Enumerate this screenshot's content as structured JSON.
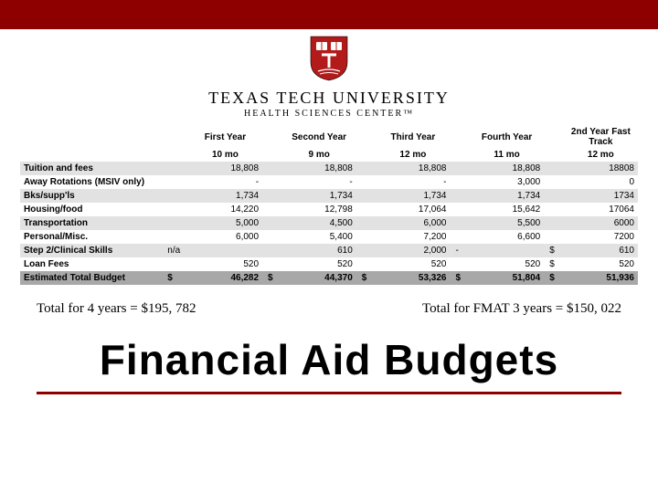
{
  "university": {
    "name": "TEXAS TECH UNIVERSITY",
    "sub": "HEALTH SCIENCES CENTER™",
    "shield_red": "#b31b1b",
    "shield_white": "#ffffff"
  },
  "table": {
    "header1": [
      "",
      "First Year",
      "Second Year",
      "Third Year",
      "Fourth Year",
      "2nd Year Fast Track"
    ],
    "header2": [
      "",
      "10 mo",
      "9 mo",
      "12 mo",
      "11 mo",
      "12 mo"
    ],
    "rows": [
      {
        "label": "Tuition and fees",
        "c": [
          "",
          "",
          "",
          "",
          ""
        ],
        "v": [
          "18,808",
          "18,808",
          "18,808",
          "18,808",
          "18808"
        ],
        "cls": "r-even"
      },
      {
        "label": "Away Rotations (MSIV only)",
        "c": [
          "",
          "",
          "",
          "",
          ""
        ],
        "v": [
          "-",
          "-",
          "-",
          "3,000",
          "0"
        ],
        "cls": "r-odd"
      },
      {
        "label": "Bks/supp'ls",
        "c": [
          "",
          "",
          "",
          "",
          ""
        ],
        "v": [
          "1,734",
          "1,734",
          "1,734",
          "1,734",
          "1734"
        ],
        "cls": "r-even"
      },
      {
        "label": "Housing/food",
        "c": [
          "",
          "",
          "",
          "",
          ""
        ],
        "v": [
          "14,220",
          "12,798",
          "17,064",
          "15,642",
          "17064"
        ],
        "cls": "r-odd"
      },
      {
        "label": "Transportation",
        "c": [
          "",
          "",
          "",
          "",
          ""
        ],
        "v": [
          "5,000",
          "4,500",
          "6,000",
          "5,500",
          "6000"
        ],
        "cls": "r-even"
      },
      {
        "label": "Personal/Misc.",
        "c": [
          "",
          "",
          "",
          "",
          ""
        ],
        "v": [
          "6,000",
          "5,400",
          "7,200",
          "6,600",
          "7200"
        ],
        "cls": "r-odd"
      },
      {
        "label": "Step 2/Clinical Skills",
        "c": [
          "n/a",
          "",
          "",
          "-",
          "$"
        ],
        "v": [
          "",
          "610",
          "2,000",
          "",
          "610"
        ],
        "cls": "r-even"
      },
      {
        "label": "Loan Fees",
        "c": [
          "",
          "",
          "",
          "",
          "$"
        ],
        "v": [
          "520",
          "520",
          "520",
          "520",
          "520"
        ],
        "cls": "r-odd"
      },
      {
        "label": "Estimated Total Budget",
        "c": [
          "$",
          "$",
          "$",
          "$",
          "$"
        ],
        "v": [
          "46,282",
          "44,370",
          "53,326",
          "51,804",
          "51,936"
        ],
        "cls": "r-total"
      }
    ]
  },
  "totals": {
    "left": "Total for 4 years = $195, 782",
    "right": "Total for FMAT 3 years = $150, 022"
  },
  "title": "Financial Aid Budgets",
  "colors": {
    "bar": "#8e0000",
    "rule": "#8e0000"
  }
}
